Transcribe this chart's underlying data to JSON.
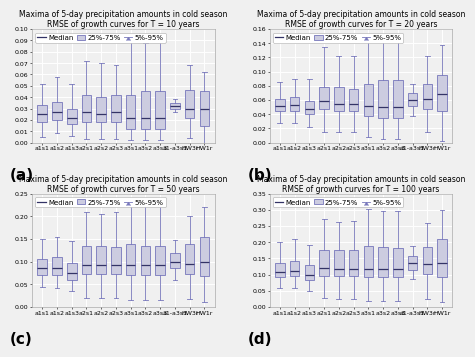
{
  "categories": [
    "a1s1",
    "a1s2",
    "a1s3",
    "a2s1",
    "a2s2",
    "a2s3",
    "a3s1",
    "a3s2",
    "a3s3",
    "a1-a3s1",
    "HW3r",
    "HW1r"
  ],
  "panels": [
    {
      "label": "(a)",
      "title": "Maxima of 5-day precipitation amounts in cold season",
      "subtitle": "RMSE of growth curves for T = 10 years",
      "ylim": [
        0.0,
        0.1
      ],
      "yticks": [
        0.0,
        0.01,
        0.02,
        0.03,
        0.04,
        0.05,
        0.06,
        0.07,
        0.08,
        0.09,
        0.1
      ],
      "ytick_labels": [
        "0.00",
        "0.01",
        "0.02",
        "0.03",
        "0.04",
        "0.05",
        "0.06",
        "0.07",
        "0.08",
        "0.09",
        "0.10"
      ],
      "boxes": [
        {
          "med": 0.025,
          "q1": 0.018,
          "q3": 0.033,
          "whislo": 0.005,
          "whishi": 0.052
        },
        {
          "med": 0.027,
          "q1": 0.02,
          "q3": 0.036,
          "whislo": 0.008,
          "whishi": 0.058
        },
        {
          "med": 0.022,
          "q1": 0.016,
          "q3": 0.03,
          "whislo": 0.006,
          "whishi": 0.052
        },
        {
          "med": 0.027,
          "q1": 0.018,
          "q3": 0.042,
          "whislo": 0.003,
          "whishi": 0.072
        },
        {
          "med": 0.025,
          "q1": 0.018,
          "q3": 0.04,
          "whislo": 0.003,
          "whishi": 0.07
        },
        {
          "med": 0.027,
          "q1": 0.018,
          "q3": 0.042,
          "whislo": 0.003,
          "whishi": 0.068
        },
        {
          "med": 0.022,
          "q1": 0.012,
          "q3": 0.042,
          "whislo": 0.002,
          "whishi": 0.09
        },
        {
          "med": 0.022,
          "q1": 0.012,
          "q3": 0.045,
          "whislo": 0.002,
          "whishi": 0.088
        },
        {
          "med": 0.022,
          "q1": 0.012,
          "q3": 0.045,
          "whislo": 0.002,
          "whishi": 0.092
        },
        {
          "med": 0.032,
          "q1": 0.03,
          "q3": 0.035,
          "whislo": 0.027,
          "whishi": 0.038
        },
        {
          "med": 0.03,
          "q1": 0.022,
          "q3": 0.046,
          "whislo": 0.004,
          "whishi": 0.068
        },
        {
          "med": 0.03,
          "q1": 0.015,
          "q3": 0.045,
          "whislo": -0.001,
          "whishi": 0.062
        }
      ]
    },
    {
      "label": "(b)",
      "title": "Maxima of 5-day precipitation amounts in cold season",
      "subtitle": "RMSE of growth curves for T = 20 years",
      "ylim": [
        0.0,
        0.16
      ],
      "yticks": [
        0.0,
        0.02,
        0.04,
        0.06,
        0.08,
        0.1,
        0.12,
        0.14,
        0.16
      ],
      "ytick_labels": [
        "0.00",
        "0.02",
        "0.04",
        "0.06",
        "0.08",
        "0.10",
        "0.12",
        "0.14",
        "0.16"
      ],
      "boxes": [
        {
          "med": 0.052,
          "q1": 0.045,
          "q3": 0.062,
          "whislo": 0.028,
          "whishi": 0.085
        },
        {
          "med": 0.053,
          "q1": 0.045,
          "q3": 0.064,
          "whislo": 0.028,
          "whishi": 0.09
        },
        {
          "med": 0.048,
          "q1": 0.04,
          "q3": 0.058,
          "whislo": 0.022,
          "whishi": 0.09
        },
        {
          "med": 0.058,
          "q1": 0.048,
          "q3": 0.078,
          "whislo": 0.015,
          "whishi": 0.135
        },
        {
          "med": 0.055,
          "q1": 0.045,
          "q3": 0.078,
          "whislo": 0.015,
          "whishi": 0.122
        },
        {
          "med": 0.055,
          "q1": 0.045,
          "q3": 0.075,
          "whislo": 0.015,
          "whishi": 0.122
        },
        {
          "med": 0.052,
          "q1": 0.038,
          "q3": 0.082,
          "whislo": 0.008,
          "whishi": 0.145
        },
        {
          "med": 0.05,
          "q1": 0.035,
          "q3": 0.088,
          "whislo": 0.005,
          "whishi": 0.142
        },
        {
          "med": 0.05,
          "q1": 0.035,
          "q3": 0.088,
          "whislo": 0.005,
          "whishi": 0.142
        },
        {
          "med": 0.06,
          "q1": 0.052,
          "q3": 0.07,
          "whislo": 0.038,
          "whishi": 0.082
        },
        {
          "med": 0.062,
          "q1": 0.048,
          "q3": 0.082,
          "whislo": 0.015,
          "whishi": 0.122
        },
        {
          "med": 0.068,
          "q1": 0.045,
          "q3": 0.095,
          "whislo": 0.002,
          "whishi": 0.138
        }
      ]
    },
    {
      "label": "(c)",
      "title": "Maxima of 5-day precipitation amounts in cold season",
      "subtitle": "RMSE of growth curves for T = 50 years",
      "ylim": [
        0.0,
        0.25
      ],
      "yticks": [
        0.0,
        0.05,
        0.1,
        0.15,
        0.2,
        0.25
      ],
      "ytick_labels": [
        "0.00",
        "0.05",
        "0.10",
        "0.15",
        "0.20",
        "0.25"
      ],
      "boxes": [
        {
          "med": 0.085,
          "q1": 0.07,
          "q3": 0.105,
          "whislo": 0.045,
          "whishi": 0.15
        },
        {
          "med": 0.085,
          "q1": 0.07,
          "q3": 0.11,
          "whislo": 0.042,
          "whishi": 0.155
        },
        {
          "med": 0.075,
          "q1": 0.06,
          "q3": 0.098,
          "whislo": 0.035,
          "whishi": 0.145
        },
        {
          "med": 0.092,
          "q1": 0.072,
          "q3": 0.135,
          "whislo": 0.02,
          "whishi": 0.21
        },
        {
          "med": 0.092,
          "q1": 0.072,
          "q3": 0.135,
          "whislo": 0.02,
          "whishi": 0.205
        },
        {
          "med": 0.092,
          "q1": 0.072,
          "q3": 0.132,
          "whislo": 0.02,
          "whishi": 0.21
        },
        {
          "med": 0.092,
          "q1": 0.07,
          "q3": 0.14,
          "whislo": 0.015,
          "whishi": 0.235
        },
        {
          "med": 0.092,
          "q1": 0.07,
          "q3": 0.135,
          "whislo": 0.015,
          "whishi": 0.225
        },
        {
          "med": 0.092,
          "q1": 0.07,
          "q3": 0.135,
          "whislo": 0.015,
          "whishi": 0.222
        },
        {
          "med": 0.1,
          "q1": 0.085,
          "q3": 0.12,
          "whislo": 0.06,
          "whishi": 0.148
        },
        {
          "med": 0.095,
          "q1": 0.072,
          "q3": 0.14,
          "whislo": 0.018,
          "whishi": 0.2
        },
        {
          "med": 0.1,
          "q1": 0.068,
          "q3": 0.155,
          "whislo": 0.012,
          "whishi": 0.22
        }
      ]
    },
    {
      "label": "(d)",
      "title": "Maxima of 5-day precipitation amounts in cold season",
      "subtitle": "RMSE of growth curves for T = 100 years",
      "ylim": [
        0.0,
        0.35
      ],
      "yticks": [
        0.0,
        0.05,
        0.1,
        0.15,
        0.2,
        0.25,
        0.3,
        0.35
      ],
      "ytick_labels": [
        "0.00",
        "0.05",
        "0.10",
        "0.15",
        "0.20",
        "0.25",
        "0.30",
        "0.35"
      ],
      "boxes": [
        {
          "med": 0.108,
          "q1": 0.092,
          "q3": 0.135,
          "whislo": 0.06,
          "whishi": 0.2
        },
        {
          "med": 0.112,
          "q1": 0.095,
          "q3": 0.142,
          "whislo": 0.058,
          "whishi": 0.21
        },
        {
          "med": 0.1,
          "q1": 0.082,
          "q3": 0.13,
          "whislo": 0.05,
          "whishi": 0.192
        },
        {
          "med": 0.12,
          "q1": 0.095,
          "q3": 0.175,
          "whislo": 0.028,
          "whishi": 0.272
        },
        {
          "med": 0.118,
          "q1": 0.095,
          "q3": 0.175,
          "whislo": 0.025,
          "whishi": 0.262
        },
        {
          "med": 0.118,
          "q1": 0.095,
          "q3": 0.175,
          "whislo": 0.025,
          "whishi": 0.265
        },
        {
          "med": 0.118,
          "q1": 0.092,
          "q3": 0.188,
          "whislo": 0.018,
          "whishi": 0.302
        },
        {
          "med": 0.118,
          "q1": 0.092,
          "q3": 0.185,
          "whislo": 0.018,
          "whishi": 0.295
        },
        {
          "med": 0.118,
          "q1": 0.092,
          "q3": 0.182,
          "whislo": 0.018,
          "whishi": 0.295
        },
        {
          "med": 0.135,
          "q1": 0.115,
          "q3": 0.158,
          "whislo": 0.085,
          "whishi": 0.188
        },
        {
          "med": 0.132,
          "q1": 0.102,
          "q3": 0.185,
          "whislo": 0.025,
          "whishi": 0.26
        },
        {
          "med": 0.135,
          "q1": 0.092,
          "q3": 0.21,
          "whislo": 0.015,
          "whishi": 0.298
        }
      ]
    }
  ],
  "box_facecolor": "#cccce0",
  "box_edgecolor": "#7777bb",
  "median_color": "#333366",
  "whisker_color": "#7777bb",
  "cap_color": "#7777bb",
  "background_color": "#f0f0f0",
  "grid_color": "#ffffff",
  "title_fontsize": 5.5,
  "tick_fontsize": 4.5,
  "legend_fontsize": 5.0,
  "panel_label_fontsize": 11
}
